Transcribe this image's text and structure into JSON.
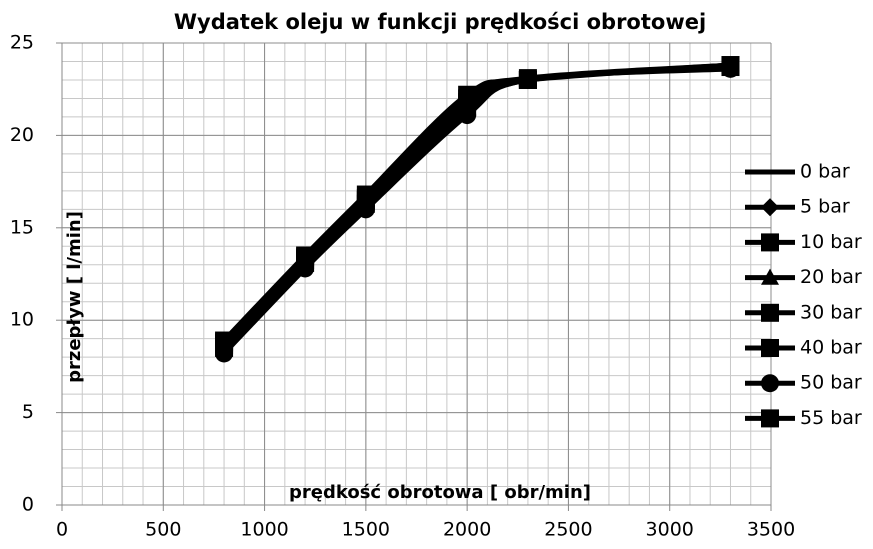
{
  "chart_data": {
    "type": "line",
    "title": "Wydatek oleju w funkcji prędkości obrotowej",
    "x_label": "prędkość obrotowa [ obr/min]",
    "y_label": "przepływ [ l/min]",
    "x": [
      800,
      1200,
      1500,
      2000,
      2300,
      3300
    ],
    "series": [
      {
        "name": "0 bar",
        "color": "#000000",
        "marker": "none",
        "values": [
          8.3,
          12.9,
          16.1,
          21.2,
          23.0,
          23.7
        ]
      },
      {
        "name": "5 bar",
        "color": "#000000",
        "marker": "diamond",
        "values": [
          8.4,
          13.0,
          16.2,
          21.4,
          23.0,
          23.7
        ]
      },
      {
        "name": "10 bar",
        "color": "#000000",
        "marker": "square",
        "values": [
          8.5,
          13.1,
          16.3,
          21.5,
          23.0,
          23.7
        ]
      },
      {
        "name": "20 bar",
        "color": "#000000",
        "marker": "triangle",
        "values": [
          8.6,
          13.2,
          16.4,
          21.7,
          23.0,
          23.8
        ]
      },
      {
        "name": "30 bar",
        "color": "#000000",
        "marker": "square",
        "values": [
          8.7,
          13.3,
          16.5,
          21.8,
          23.0,
          23.8
        ]
      },
      {
        "name": "40 bar",
        "color": "#000000",
        "marker": "square",
        "values": [
          8.8,
          13.4,
          16.6,
          22.0,
          23.1,
          23.8
        ]
      },
      {
        "name": "50 bar",
        "color": "#000000",
        "marker": "circle",
        "values": [
          8.2,
          12.8,
          16.0,
          21.1,
          23.0,
          23.6
        ]
      },
      {
        "name": "55 bar",
        "color": "#000000",
        "marker": "square",
        "values": [
          8.9,
          13.5,
          16.8,
          22.2,
          23.0,
          23.8
        ]
      }
    ],
    "xlim": [
      0,
      3500
    ],
    "xticks": [
      0,
      500,
      1000,
      1500,
      2000,
      2500,
      3000,
      3500
    ],
    "ylim": [
      0,
      25
    ],
    "yticks": [
      0,
      5,
      10,
      15,
      20,
      25
    ],
    "grid": true,
    "minor_grid": {
      "x": 100,
      "y": 1
    },
    "legend": "right"
  }
}
